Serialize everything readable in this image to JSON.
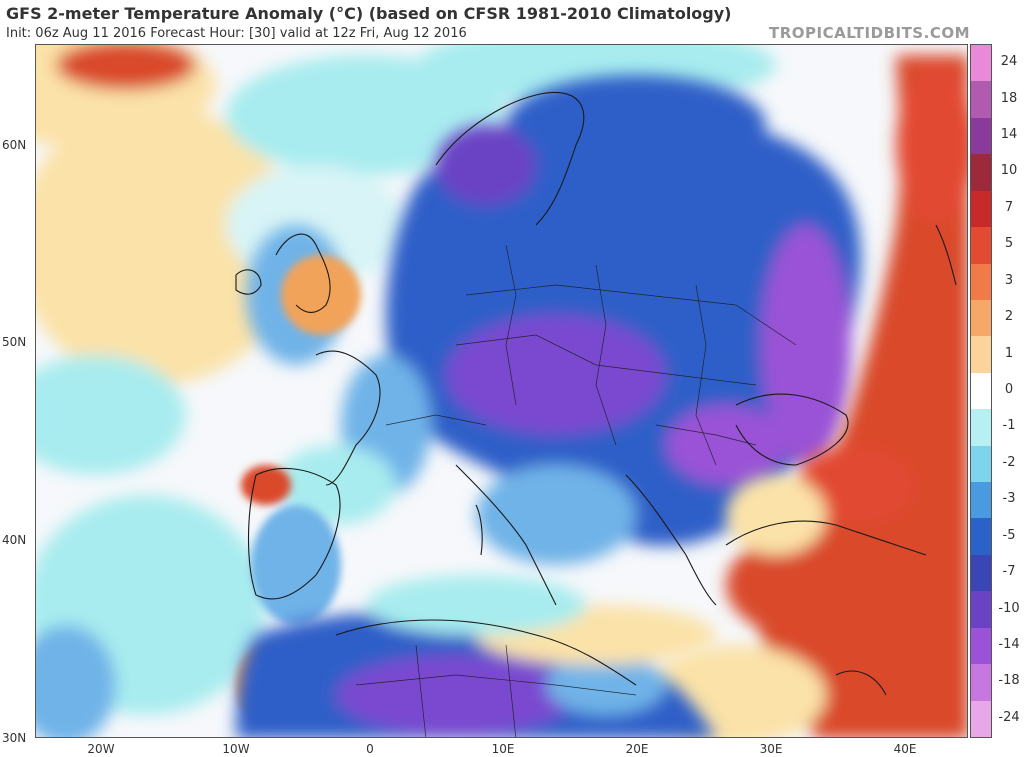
{
  "header": {
    "title": "GFS 2-meter Temperature Anomaly (°C) (based on CFSR 1981-2010 Climatology)",
    "subtitle": "Init: 06z Aug 11 2016   Forecast Hour: [30]   valid at 12z Fri, Aug 12 2016",
    "brand": "TROPICALTIDBITS.COM"
  },
  "map": {
    "lat_labels": [
      "60N",
      "50N",
      "40N",
      "30N"
    ],
    "lon_labels": [
      "20W",
      "10W",
      "0",
      "10E",
      "20E",
      "30E",
      "40E"
    ],
    "colors": {
      "ocean_neutral": "#f6f8fb",
      "warm_light": "#fbe2a8",
      "warm_orange": "#f2a35a",
      "warm_red": "#d9482a",
      "cool_cyan": "#a8ecef",
      "cool_light_blue": "#6fb3e8",
      "cool_blue": "#2f5fc8",
      "cool_purple": "#7a4ad0",
      "border": "#1a1a1a"
    }
  },
  "colorbar": {
    "levels": [
      {
        "label": "24",
        "color": "#e88ad8"
      },
      {
        "label": "18",
        "color": "#b05ab0"
      },
      {
        "label": "14",
        "color": "#8a3a9a"
      },
      {
        "label": "10",
        "color": "#9c2a3a"
      },
      {
        "label": "7",
        "color": "#c82a2a"
      },
      {
        "label": "5",
        "color": "#e24a32"
      },
      {
        "label": "3",
        "color": "#f07a48"
      },
      {
        "label": "2",
        "color": "#f6a868"
      },
      {
        "label": "1",
        "color": "#fad49a"
      },
      {
        "label": "0",
        "color": "#ffffff"
      },
      {
        "label": "-1",
        "color": "#b6f0f2"
      },
      {
        "label": "-2",
        "color": "#7ed4ec"
      },
      {
        "label": "-3",
        "color": "#4a9ae0"
      },
      {
        "label": "-5",
        "color": "#2a62c8"
      },
      {
        "label": "-7",
        "color": "#3a46b4"
      },
      {
        "label": "-10",
        "color": "#6a42c4"
      },
      {
        "label": "-14",
        "color": "#9a52d6"
      },
      {
        "label": "-18",
        "color": "#c678e0"
      },
      {
        "label": "-24",
        "color": "#e8a8e8"
      }
    ]
  }
}
